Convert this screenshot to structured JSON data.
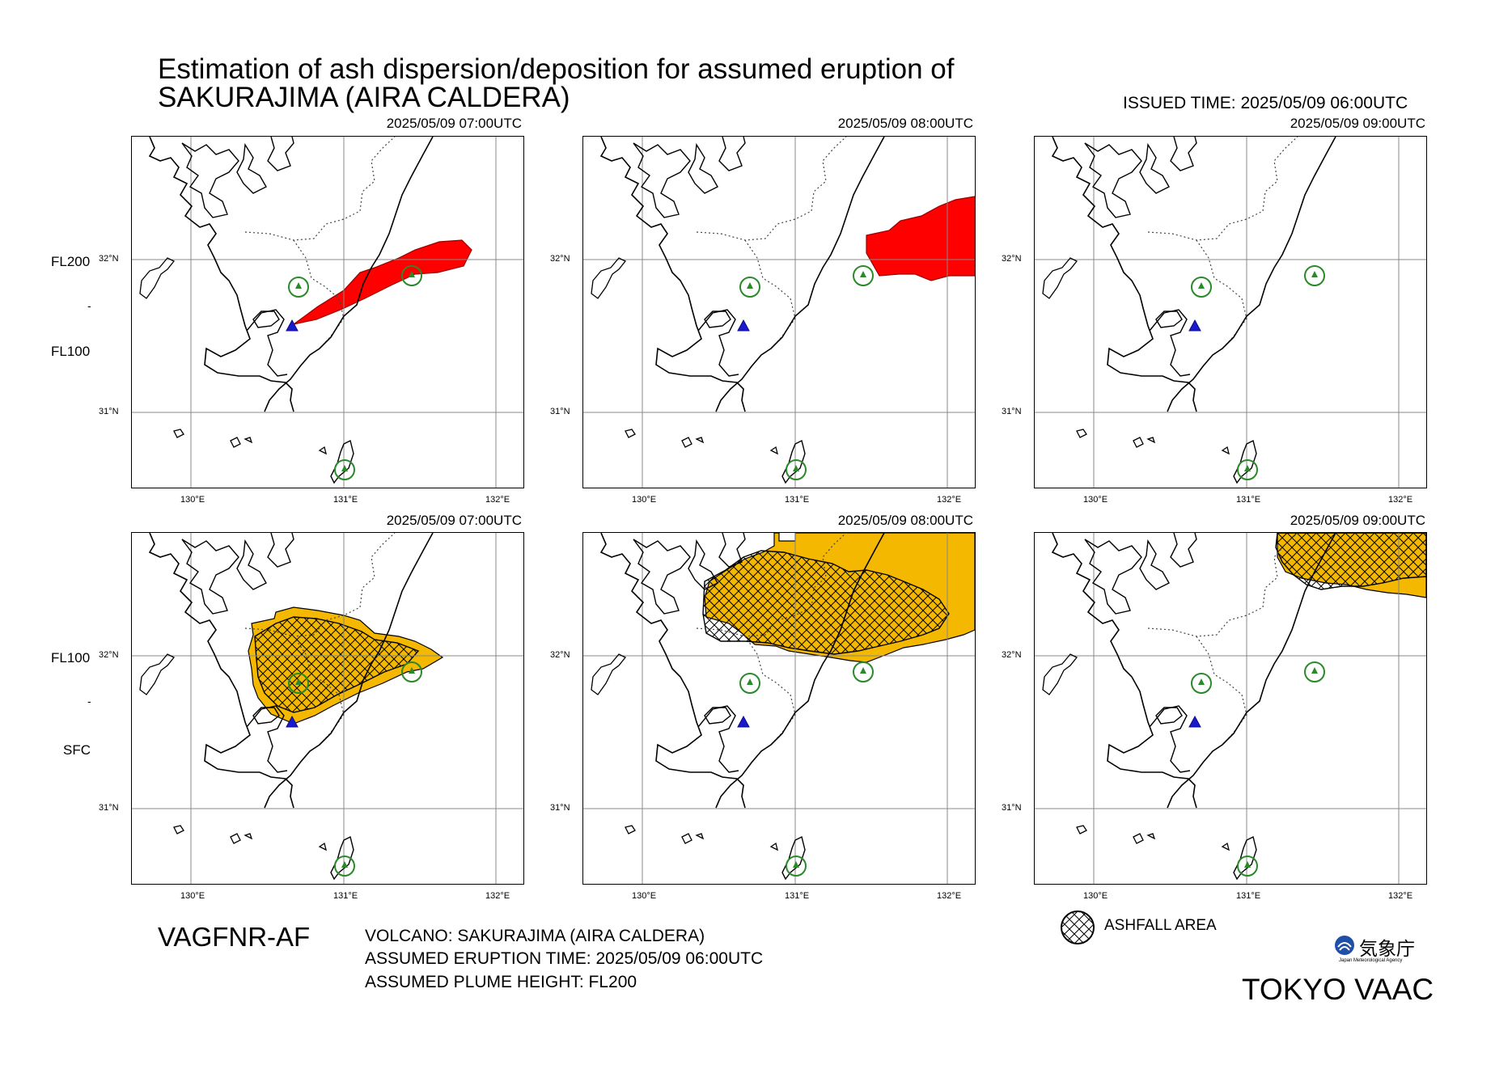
{
  "title": {
    "line1": "Estimation of ash dispersion/deposition for assumed eruption of",
    "line2": "SAKURAJIMA (AIRA CALDERA)"
  },
  "issued_time": "ISSUED TIME: 2025/05/09 06:00UTC",
  "levels": {
    "upper_top": "FL200",
    "upper_mid": "-",
    "upper_bottom": "FL100",
    "lower_top": "FL100",
    "lower_mid": "-",
    "lower_bottom": "SFC"
  },
  "latitude_ticks": [
    "32°N",
    "31°N"
  ],
  "longitude_ticks": [
    "130°E",
    "131°E",
    "132°E"
  ],
  "panels": [
    {
      "row": "upper",
      "time": "2025/05/09 07:00UTC",
      "layer": "FL100-FL200",
      "ash_cloud": true,
      "ashfall": false
    },
    {
      "row": "upper",
      "time": "2025/05/09 08:00UTC",
      "layer": "FL100-FL200",
      "ash_cloud": true,
      "ashfall": false
    },
    {
      "row": "upper",
      "time": "2025/05/09 09:00UTC",
      "layer": "FL100-FL200",
      "ash_cloud": false,
      "ashfall": false
    },
    {
      "row": "lower",
      "time": "2025/05/09 07:00UTC",
      "layer": "SFC-FL100",
      "ash_cloud": true,
      "ashfall": true
    },
    {
      "row": "lower",
      "time": "2025/05/09 08:00UTC",
      "layer": "SFC-FL100",
      "ash_cloud": true,
      "ashfall": true
    },
    {
      "row": "lower",
      "time": "2025/05/09 09:00UTC",
      "layer": "SFC-FL100",
      "ash_cloud": true,
      "ashfall": true
    }
  ],
  "product_code": "VAGFNR-AF",
  "info": {
    "volcano": "VOLCANO: SAKURAJIMA (AIRA CALDERA)",
    "eruption_time": "ASSUMED ERUPTION TIME: 2025/05/09 06:00UTC",
    "plume_height": "ASSUMED PLUME HEIGHT: FL200"
  },
  "legend": {
    "ashfall_label": "ASHFALL AREA"
  },
  "agency": {
    "logo_text": "気象庁",
    "logo_subtext": "Japan Meteorological Agency",
    "vaac": "TOKYO VAAC"
  },
  "colors": {
    "upper_ash": "#ff0000",
    "lower_ash": "#f5b800",
    "volcano_marker": "#1a1acc",
    "airport_marker": "#2a8a2a",
    "grid": "#888888"
  },
  "icons": {
    "volcano": "blue-triangle-icon",
    "airport": "airplane-circle-icon",
    "ashfall": "crosshatch-icon"
  }
}
